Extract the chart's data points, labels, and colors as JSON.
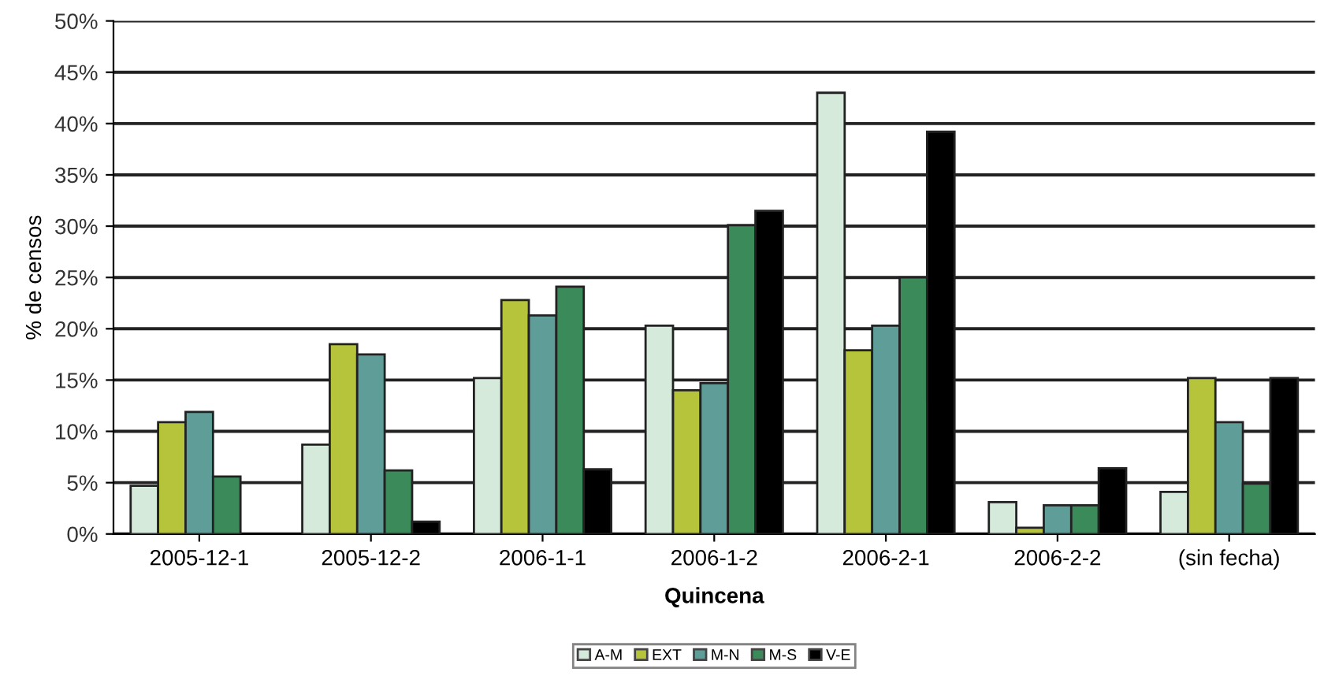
{
  "chart_data": {
    "type": "bar",
    "xlabel": "Quincena",
    "ylabel": "% de censos",
    "categories": [
      "2005-12-1",
      "2005-12-2",
      "2006-1-1",
      "2006-1-2",
      "2006-2-1",
      "2006-2-2",
      "(sin fecha)"
    ],
    "series": [
      {
        "name": "A-M",
        "color": "#d5eadb",
        "values": [
          4.7,
          8.7,
          15.2,
          20.3,
          43.0,
          3.1,
          4.1
        ]
      },
      {
        "name": "EXT",
        "color": "#b5c43a",
        "values": [
          10.9,
          18.5,
          22.8,
          14.0,
          17.9,
          0.6,
          15.2
        ]
      },
      {
        "name": "M-N",
        "color": "#5f9e98",
        "values": [
          11.9,
          17.5,
          21.3,
          14.7,
          20.3,
          2.8,
          10.9
        ]
      },
      {
        "name": "M-S",
        "color": "#3b8a5a",
        "values": [
          5.6,
          6.2,
          24.1,
          30.1,
          25.0,
          2.8,
          4.9
        ]
      },
      {
        "name": "V-E",
        "color": "#000000",
        "values": [
          null,
          1.2,
          6.3,
          31.5,
          39.2,
          6.4,
          15.2
        ]
      }
    ],
    "ylim": [
      0,
      50
    ],
    "yticks": [
      {
        "value": 0,
        "label": "0%"
      },
      {
        "value": 5,
        "label": "5%"
      },
      {
        "value": 10,
        "label": "10%"
      },
      {
        "value": 15,
        "label": "15%"
      },
      {
        "value": 20,
        "label": "20%"
      },
      {
        "value": 25,
        "label": "25%"
      },
      {
        "value": 30,
        "label": "30%"
      },
      {
        "value": 35,
        "label": "35%"
      },
      {
        "value": 40,
        "label": "40%"
      },
      {
        "value": 45,
        "label": "45%"
      },
      {
        "value": 50,
        "label": "50%"
      }
    ],
    "grid": "y",
    "legend": "bottom"
  }
}
